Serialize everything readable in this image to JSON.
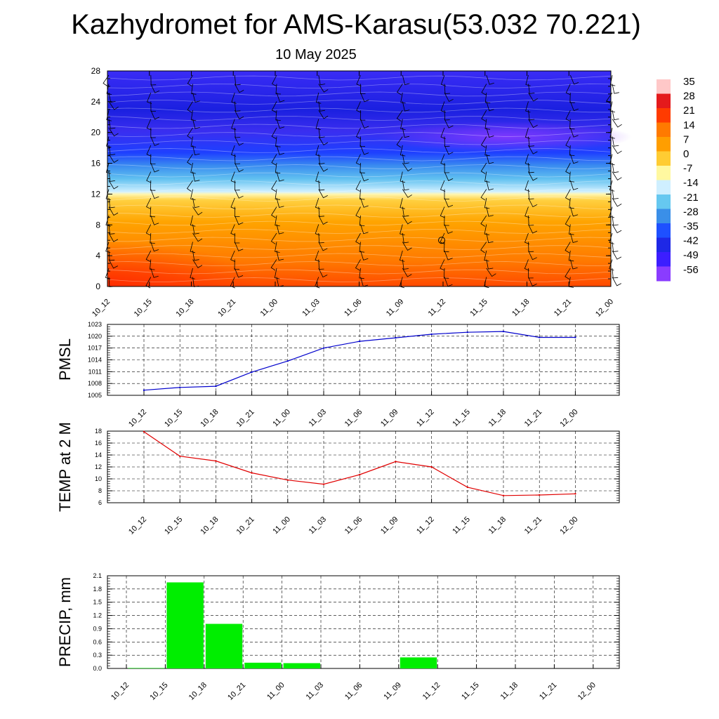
{
  "header": {
    "title": "Kazhydromet for AMS-Karasu(53.032 70.221)",
    "subtitle": "10 May 2025"
  },
  "chart_data": [
    {
      "type": "heatmap",
      "panel": "cross-section",
      "y_ticks": [
        0,
        4,
        8,
        12,
        16,
        20,
        24,
        28
      ],
      "ylim": [
        0,
        28
      ],
      "x_ticks": [
        "10_12",
        "10_15",
        "10_18",
        "10_21",
        "11_00",
        "11_03",
        "11_06",
        "11_09",
        "11_12",
        "11_15",
        "11_18",
        "11_21",
        "12_00"
      ],
      "colorbar": {
        "labels": [
          "35",
          "28",
          "21",
          "14",
          "7",
          "0",
          "-7",
          "-14",
          "-21",
          "-28",
          "-35",
          "-42",
          "-49",
          "-56"
        ],
        "colors": [
          "#ffc8c8",
          "#e41a1c",
          "#ff3b00",
          "#ff7a00",
          "#ff9e00",
          "#ffcc33",
          "#fff8a0",
          "#cfefff",
          "#66c8f0",
          "#3a8fe8",
          "#1e50ff",
          "#1e28e6",
          "#3c1eff",
          "#8a3cff"
        ]
      },
      "grid": false,
      "overlay": "wind barbs"
    },
    {
      "type": "line",
      "ylabel": "PMSL",
      "ylim": [
        1005,
        1023
      ],
      "y_ticks": [
        1005,
        1008,
        1011,
        1014,
        1017,
        1020,
        1023
      ],
      "x": [
        "10_12",
        "10_15",
        "10_18",
        "10_21",
        "11_00",
        "11_03",
        "11_06",
        "11_09",
        "11_12",
        "11_15",
        "11_18",
        "11_21",
        "12_00"
      ],
      "series": [
        {
          "values": [
            1006.3,
            1007.0,
            1007.3,
            1010.9,
            1013.7,
            1017.0,
            1018.7,
            1019.6,
            1020.5,
            1021.0,
            1021.2,
            1019.7,
            1019.7
          ],
          "color": "#0000cc"
        }
      ],
      "grid": true
    },
    {
      "type": "line",
      "ylabel": "TEMP at 2 M",
      "ylim": [
        6,
        18
      ],
      "y_ticks": [
        6,
        8,
        10,
        12,
        14,
        16,
        18
      ],
      "x": [
        "10_12",
        "10_15",
        "10_18",
        "10_21",
        "11_00",
        "11_03",
        "11_06",
        "11_09",
        "11_12",
        "11_15",
        "11_18",
        "11_21",
        "12_00"
      ],
      "series": [
        {
          "values": [
            17.9,
            13.8,
            13.0,
            11.0,
            9.8,
            9.1,
            10.7,
            12.9,
            12.0,
            8.6,
            7.2,
            7.3,
            7.5
          ],
          "color": "#e00000"
        }
      ],
      "grid": true
    },
    {
      "type": "bar",
      "ylabel": "PRECIP, mm",
      "ylim": [
        0,
        2.1
      ],
      "y_ticks": [
        "0.0",
        "0.3",
        "0.6",
        "0.9",
        "1.2",
        "1.5",
        "1.8",
        "2.1"
      ],
      "categories": [
        "10_12",
        "10_15",
        "10_18",
        "10_21",
        "11_00",
        "11_03",
        "11_06",
        "11_09",
        "11_12",
        "11_15",
        "11_18",
        "11_21",
        "12_00"
      ],
      "values": [
        0,
        0.01,
        1.95,
        1.01,
        0.13,
        0.12,
        0,
        0,
        0.25,
        0,
        0,
        0,
        0
      ],
      "color": "#00ee00",
      "grid": true
    }
  ]
}
